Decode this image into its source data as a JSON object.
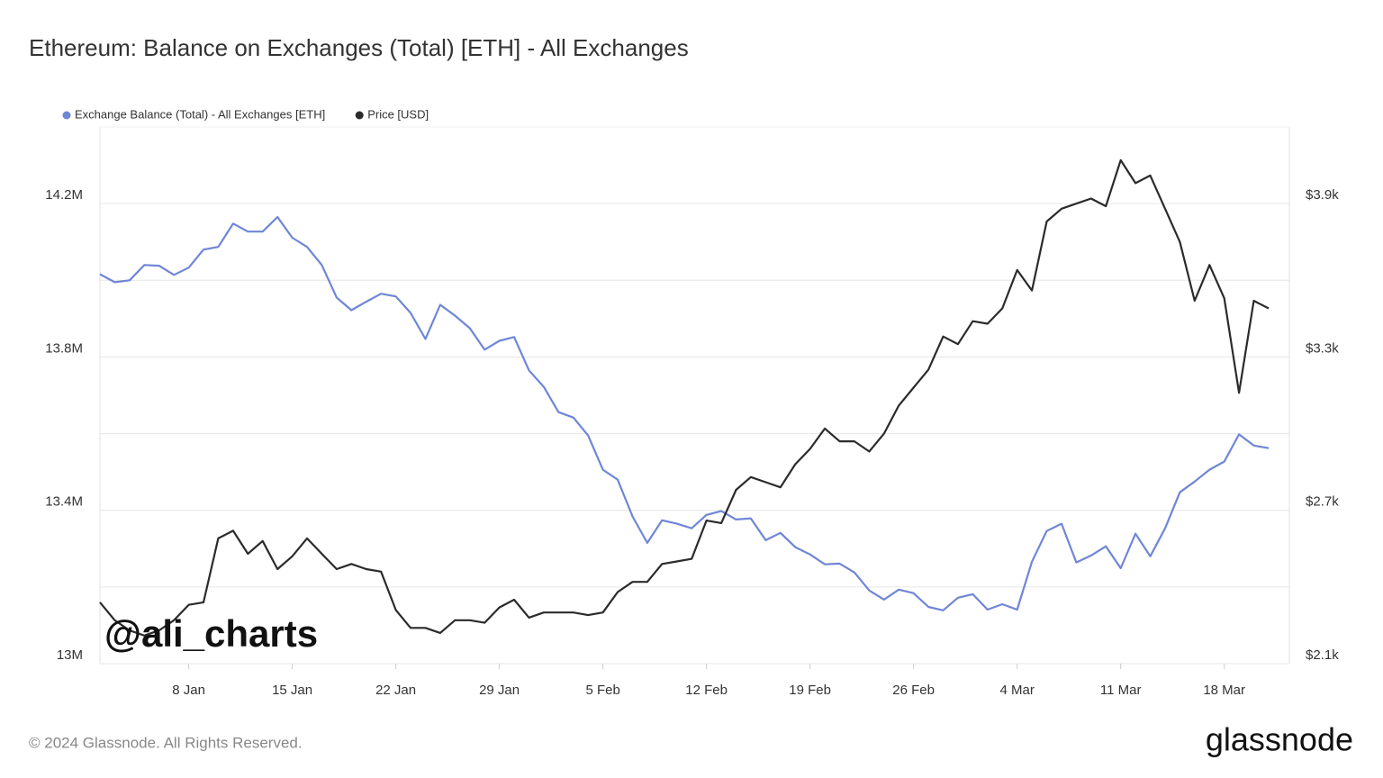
{
  "chart_data": {
    "type": "line",
    "title": "Ethereum: Balance on Exchanges (Total) [ETH] - All Exchanges",
    "legend": "top-left",
    "grid": true,
    "categories": [
      null,
      null,
      null,
      null,
      null,
      null,
      "8 Jan",
      null,
      null,
      null,
      null,
      null,
      null,
      "15 Jan",
      null,
      null,
      null,
      null,
      null,
      null,
      "22 Jan",
      null,
      null,
      null,
      null,
      null,
      null,
      "29 Jan",
      null,
      null,
      null,
      null,
      null,
      null,
      "5 Feb",
      null,
      null,
      null,
      null,
      null,
      null,
      "12 Feb",
      null,
      null,
      null,
      null,
      null,
      null,
      "19 Feb",
      null,
      null,
      null,
      null,
      null,
      null,
      "26 Feb",
      null,
      null,
      null,
      null,
      null,
      null,
      "4 Mar",
      null,
      null,
      null,
      null,
      null,
      null,
      "11 Mar",
      null,
      null,
      null,
      null,
      null,
      null,
      "18 Mar",
      null,
      null,
      null
    ],
    "ylim": [
      13000000,
      14400000
    ],
    "yticks": [
      {
        "value": 13000000,
        "label": "13M"
      },
      {
        "value": 13400000,
        "label": "13.4M"
      },
      {
        "value": 13800000,
        "label": "13.8M"
      },
      {
        "value": 14200000,
        "label": "14.2M"
      }
    ],
    "yminor": [
      13200000,
      13600000,
      14000000
    ],
    "y2lim": [
      2100,
      4200
    ],
    "y2ticks": [
      {
        "value": 2100,
        "label": "$2.1k"
      },
      {
        "value": 2700,
        "label": "$2.7k"
      },
      {
        "value": 3300,
        "label": "$3.3k"
      },
      {
        "value": 3900,
        "label": "$3.9k"
      }
    ],
    "series": [
      {
        "name": "Exchange Balance (Total) - All Exchanges [ETH]",
        "color": "#6f86d6",
        "axis": "y",
        "values": [
          14016000,
          13995000,
          14000000,
          14040000,
          14038000,
          14014000,
          14033000,
          14080000,
          14087000,
          14148000,
          14127000,
          14127000,
          14165000,
          14111000,
          14087000,
          14040000,
          13955000,
          13922000,
          13944000,
          13965000,
          13958000,
          13915000,
          13847000,
          13936000,
          13908000,
          13875000,
          13819000,
          13842000,
          13852000,
          13765000,
          13722000,
          13656000,
          13642000,
          13595000,
          13506000,
          13480000,
          13384000,
          13315000,
          13374000,
          13365000,
          13353000,
          13388000,
          13398000,
          13376000,
          13379000,
          13322000,
          13341000,
          13304000,
          13285000,
          13259000,
          13261000,
          13238000,
          13191000,
          13167000,
          13193000,
          13184000,
          13148000,
          13139000,
          13172000,
          13181000,
          13141000,
          13155000,
          13141000,
          13266000,
          13346000,
          13365000,
          13264000,
          13282000,
          13306000,
          13249000,
          13339000,
          13280000,
          13353000,
          13447000,
          13475000,
          13506000,
          13527000,
          13598000,
          13569000,
          13562000
        ]
      },
      {
        "name": "Price [USD]",
        "color": "#2b2b2b",
        "axis": "y2",
        "values": [
          2340,
          2270,
          2230,
          2210,
          2230,
          2270,
          2330,
          2340,
          2590,
          2620,
          2530,
          2580,
          2470,
          2520,
          2590,
          2530,
          2470,
          2490,
          2470,
          2460,
          2310,
          2240,
          2240,
          2220,
          2270,
          2270,
          2260,
          2320,
          2350,
          2280,
          2300,
          2300,
          2300,
          2290,
          2300,
          2380,
          2420,
          2420,
          2490,
          2500,
          2510,
          2660,
          2650,
          2780,
          2830,
          2810,
          2790,
          2880,
          2940,
          3020,
          2970,
          2970,
          2930,
          3000,
          3110,
          3180,
          3250,
          3380,
          3350,
          3440,
          3430,
          3490,
          3640,
          3560,
          3830,
          3880,
          3900,
          3920,
          3890,
          4070,
          3980,
          4010,
          3880,
          3750,
          3520,
          3660,
          3530,
          3160,
          3520,
          3490
        ]
      }
    ]
  },
  "watermark": "@ali_charts",
  "footer": "© 2024 Glassnode. All Rights Reserved.",
  "logo": "glassnode"
}
